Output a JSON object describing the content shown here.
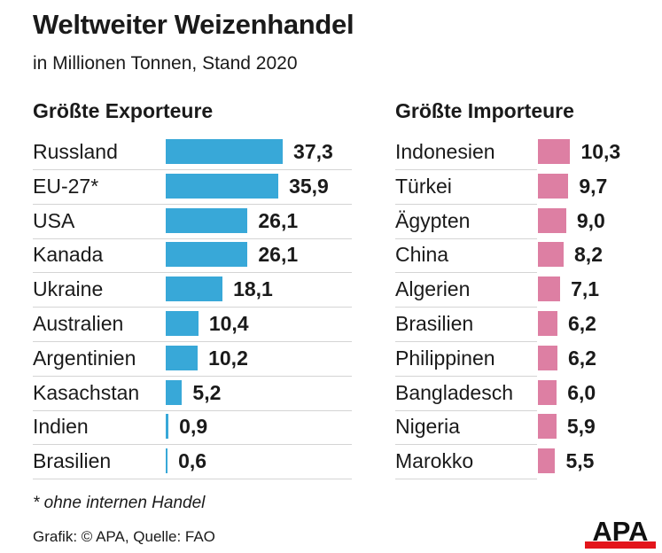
{
  "title": "Weltweiter Weizenhandel",
  "subtitle": "in Millionen Tonnen, Stand 2020",
  "footnote": "* ohne internen Handel",
  "source": "Grafik: © APA, Quelle: FAO",
  "logo_text": "APA",
  "chart_data": [
    {
      "type": "bar",
      "orientation": "horizontal",
      "title": "Größte Exporteure",
      "color": "#38a8d8",
      "categories": [
        "Russland",
        "EU-27*",
        "USA",
        "Kanada",
        "Ukraine",
        "Australien",
        "Argentinien",
        "Kasachstan",
        "Indien",
        "Brasilien"
      ],
      "values": [
        37.3,
        35.9,
        26.1,
        26.1,
        18.1,
        10.4,
        10.2,
        5.2,
        0.9,
        0.6
      ],
      "labels": [
        "37,3",
        "35,9",
        "26,1",
        "26,1",
        "18,1",
        "10,4",
        "10,2",
        "5,2",
        "0,9",
        "0,6"
      ]
    },
    {
      "type": "bar",
      "orientation": "horizontal",
      "title": "Größte Importeure",
      "color": "#dd7fa3",
      "categories": [
        "Indonesien",
        "Türkei",
        "Ägypten",
        "China",
        "Algerien",
        "Brasilien",
        "Philippinen",
        "Bangladesch",
        "Nigeria",
        "Marokko"
      ],
      "values": [
        10.3,
        9.7,
        9.0,
        8.2,
        7.1,
        6.2,
        6.2,
        6.0,
        5.9,
        5.5
      ],
      "labels": [
        "10,3",
        "9,7",
        "9,0",
        "8,2",
        "7,1",
        "6,2",
        "6,2",
        "6,0",
        "5,9",
        "5,5"
      ]
    }
  ]
}
